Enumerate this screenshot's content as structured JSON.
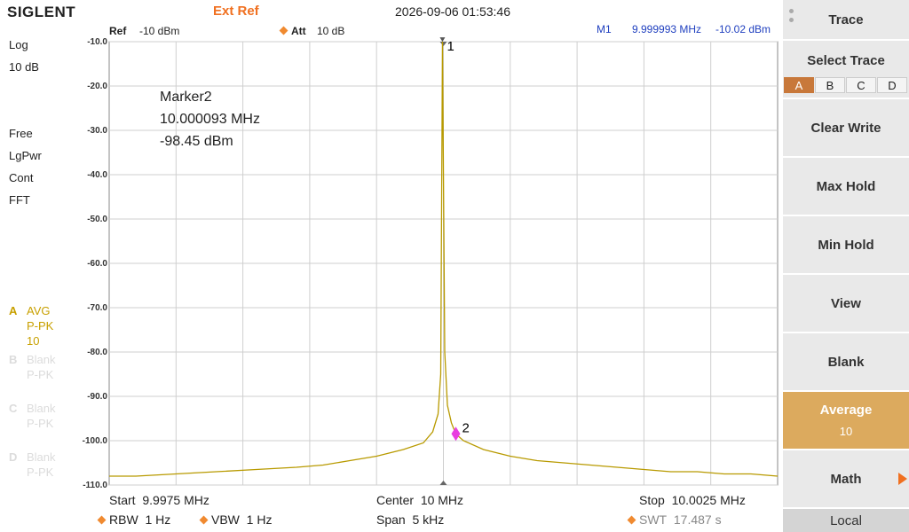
{
  "header": {
    "brand": "SIGLENT",
    "ref_source": "Ext Ref",
    "datetime": "2026-09-06 01:53:46"
  },
  "settings": {
    "ref_label": "Ref",
    "ref_value": "-10 dBm",
    "att_label": "Att",
    "att_value": "10 dB"
  },
  "left_panel": {
    "scale": "Log",
    "scale_div": "10 dB",
    "trigger": "Free",
    "detector": "LgPwr",
    "sweep": "Cont",
    "mode": "FFT",
    "traces": [
      {
        "letter": "A",
        "lines": [
          "AVG",
          "P-PK",
          "10"
        ]
      },
      {
        "letter": "B",
        "lines": [
          "Blank",
          "P-PK"
        ]
      },
      {
        "letter": "C",
        "lines": [
          "Blank",
          "P-PK"
        ]
      },
      {
        "letter": "D",
        "lines": [
          "Blank",
          "P-PK"
        ]
      }
    ]
  },
  "chart_data": {
    "type": "line",
    "color": "#b89a00",
    "xlim": [
      9.9975,
      10.0025
    ],
    "ylim": [
      -110,
      -10
    ],
    "yticks": [
      {
        "value": -10,
        "label": "-10.0"
      },
      {
        "value": -20,
        "label": "-20.0"
      },
      {
        "value": -30,
        "label": "-30.0"
      },
      {
        "value": -40,
        "label": "-40.0"
      },
      {
        "value": -50,
        "label": "-50.0"
      },
      {
        "value": -60,
        "label": "-60.0"
      },
      {
        "value": -70,
        "label": "-70.0"
      },
      {
        "value": -80,
        "label": "-80.0"
      },
      {
        "value": -90,
        "label": "-90.0"
      },
      {
        "value": -100,
        "label": "-100.0"
      },
      {
        "value": -110,
        "label": "-110.0"
      }
    ],
    "grid": true,
    "x": [
      9.9975,
      9.9977,
      9.998,
      9.9983,
      9.9986,
      9.9989,
      9.9991,
      9.9993,
      9.9995,
      9.9997,
      9.99985,
      9.99992,
      9.99996,
      9.99998,
      9.999993,
      10.00001,
      10.00003,
      10.00006,
      10.000093,
      10.00015,
      10.0003,
      10.0005,
      10.0007,
      10.0009,
      10.0011,
      10.0013,
      10.0015,
      10.0017,
      10.0019,
      10.0021,
      10.0023,
      10.0025
    ],
    "values": [
      -108,
      -108,
      -107.5,
      -107,
      -106.5,
      -106,
      -105.5,
      -104.5,
      -103.5,
      -102,
      -100.5,
      -98,
      -94,
      -85,
      -10,
      -80,
      -92,
      -96,
      -98.5,
      -100,
      -102,
      -103.5,
      -104.5,
      -105,
      -105.5,
      -106,
      -106.5,
      -107,
      -107,
      -107.5,
      -107.5,
      -108
    ],
    "markers": [
      {
        "label": "1",
        "name": "M1",
        "x": 9.999993,
        "y": -10.02,
        "freq": "9.999993 MHz",
        "level": "-10.02 dBm"
      },
      {
        "label": "2",
        "name": "M2",
        "active": ">",
        "x": 10.000093,
        "y": -98.45,
        "freq": "10.000093 MHz",
        "level": "-98.45 dBm"
      }
    ],
    "marker_readout": {
      "title": "Marker2"
    }
  },
  "footer": {
    "start_label": "Start",
    "start": "9.9975 MHz",
    "center_label": "Center",
    "center": "10 MHz",
    "stop_label": "Stop",
    "stop": "10.0025 MHz",
    "rbw_label": "RBW",
    "rbw": "1 Hz",
    "vbw_label": "VBW",
    "vbw": "1 Hz",
    "span_label": "Span",
    "span": "5 kHz",
    "swt_label": "SWT",
    "swt": "17.487 s"
  },
  "softkeys": {
    "menu": "Trace",
    "select": "Select Trace",
    "tabs": [
      "A",
      "B",
      "C",
      "D"
    ],
    "clear_write": "Clear Write",
    "max_hold": "Max Hold",
    "min_hold": "Min Hold",
    "view": "View",
    "blank": "Blank",
    "average": "Average",
    "average_count": "10",
    "math": "Math",
    "local": "Local"
  }
}
